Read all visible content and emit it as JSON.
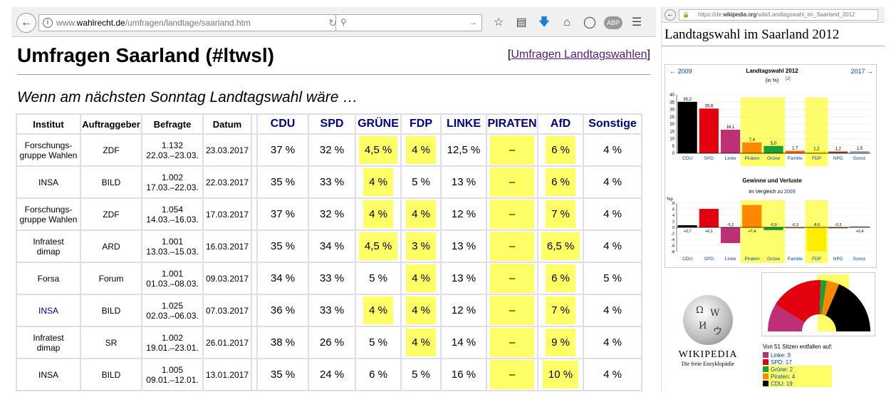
{
  "browser_left": {
    "url_prefix": "www.",
    "url_domain": "wahlrecht.de",
    "url_path": "/umfragen/landtage/saarland.htm",
    "abp_label": "ABP"
  },
  "page": {
    "title": "Umfragen Saarland (#ltwsl)",
    "top_link_open": "[",
    "top_link": "Umfragen Landtagswahlen",
    "top_link_close": "]",
    "subtitle": "Wenn am nächsten Sonntag Landtagswahl wäre …"
  },
  "table": {
    "headers": [
      "Institut",
      "Auftraggeber",
      "Befragte",
      "Datum"
    ],
    "parties": [
      "CDU",
      "SPD",
      "GRÜNE",
      "FDP",
      "LINKE",
      "PIRATEN",
      "AfD",
      "Sonstige"
    ],
    "rows": [
      {
        "inst1": "Forschungs-",
        "inst2": "gruppe Wahlen",
        "client": "ZDF",
        "n": "1.132",
        "range": "22.03.–23.03.",
        "date": "23.03.2017",
        "cdu": "37 %",
        "spd": "32 %",
        "gruene": "4,5 %",
        "fdp": "4 %",
        "linke": "12,5 %",
        "piraten": "–",
        "afd": "6 %",
        "sonst": "4 %"
      },
      {
        "inst1": "INSA",
        "inst2": "",
        "client": "BILD",
        "n": "1.002",
        "range": "17.03.–22.03.",
        "date": "22.03.2017",
        "cdu": "35 %",
        "spd": "33 %",
        "gruene": "4 %",
        "fdp": "5 %",
        "linke": "13 %",
        "piraten": "–",
        "afd": "6 %",
        "sonst": "4 %"
      },
      {
        "inst1": "Forschungs-",
        "inst2": "gruppe Wahlen",
        "client": "ZDF",
        "n": "1.054",
        "range": "14.03.–16.03.",
        "date": "17.03.2017",
        "cdu": "37 %",
        "spd": "32 %",
        "gruene": "4 %",
        "fdp": "4 %",
        "linke": "12 %",
        "piraten": "–",
        "afd": "7 %",
        "sonst": "4 %"
      },
      {
        "inst1": "Infratest",
        "inst2": "dimap",
        "client": "ARD",
        "n": "1.001",
        "range": "13.03.–15.03.",
        "date": "16.03.2017",
        "cdu": "35 %",
        "spd": "34 %",
        "gruene": "4,5 %",
        "fdp": "3 %",
        "linke": "13 %",
        "piraten": "–",
        "afd": "6,5 %",
        "sonst": "4 %"
      },
      {
        "inst1": "Forsa",
        "inst2": "",
        "client": "Forum",
        "n": "1.001",
        "range": "01.03.–08.03.",
        "date": "09.03.2017",
        "cdu": "34 %",
        "spd": "33 %",
        "gruene": "5 %",
        "fdp": "4 %",
        "linke": "13 %",
        "piraten": "–",
        "afd": "6 %",
        "sonst": "5 %"
      },
      {
        "inst1": "INSA",
        "inst2": "",
        "client": "BILD",
        "n": "1.025",
        "range": "02.03.–06.03.",
        "date": "07.03.2017",
        "cdu": "36 %",
        "spd": "33 %",
        "gruene": "4 %",
        "fdp": "4 %",
        "linke": "12 %",
        "piraten": "–",
        "afd": "7 %",
        "sonst": "4 %"
      },
      {
        "inst1": "Infratest",
        "inst2": "dimap",
        "client": "SR",
        "n": "1.002",
        "range": "19.01.–23.01.",
        "date": "26.01.2017",
        "cdu": "38 %",
        "spd": "26 %",
        "gruene": "5 %",
        "fdp": "4 %",
        "linke": "14 %",
        "piraten": "–",
        "afd": "9 %",
        "sonst": "4 %"
      },
      {
        "inst1": "INSA",
        "inst2": "",
        "client": "BILD",
        "n": "1.005",
        "range": "09.01.–12.01.",
        "date": "13.01.2017",
        "cdu": "35 %",
        "spd": "24 %",
        "gruene": "6 %",
        "fdp": "5 %",
        "linke": "16 %",
        "piraten": "–",
        "afd": "10 %",
        "sonst": "4 %"
      }
    ]
  },
  "browser_right": {
    "url_prefix": "https://de.",
    "url_domain": "wikipedia.org",
    "url_path": "/wiki/Landtagswahl_im_Saarland_2012",
    "page_title": "Landtagswahl im Saarland 2012"
  },
  "wiki_chart": {
    "prev": "← 2009",
    "next": "2017 →",
    "title": "Landtagswahl 2012",
    "unit": "(in %)",
    "unit_ref": "[1]",
    "section2_title": "Gewinne und Verluste",
    "section2_sub_prefix": "im Vergleich zu ",
    "section2_sub_link": "2009",
    "y_unit2": "%p"
  },
  "chart_data": [
    {
      "type": "bar",
      "title": "Landtagswahl 2012",
      "ylabel": "(in %)",
      "categories": [
        "CDU",
        "SPD",
        "Linke",
        "Piraten",
        "Grüne",
        "Familie",
        "FDP",
        "NPD",
        "Sonst."
      ],
      "values": [
        35.2,
        30.6,
        16.1,
        7.4,
        5.0,
        1.7,
        1.2,
        1.2,
        1.5
      ],
      "labels": [
        "35,2",
        "30,6",
        "16,1",
        "7,4",
        "5,0",
        "1,7",
        "1,2",
        "1,2",
        "1,5"
      ],
      "colors": [
        "#000000",
        "#e3000f",
        "#be3075",
        "#ff8800",
        "#1aa037",
        "#ff6600",
        "#ffed00",
        "#8b4726",
        "#aaaaaa"
      ],
      "ylim": [
        0,
        40
      ],
      "yticks": [
        "0",
        "5",
        "10",
        "15",
        "20",
        "25",
        "30",
        "35",
        "40"
      ]
    },
    {
      "type": "bar",
      "title": "Gewinne und Verluste",
      "ylabel": "%p",
      "categories": [
        "CDU",
        "SPD",
        "Linke",
        "Piraten",
        "Grüne",
        "Familie",
        "FDP",
        "NPD",
        "Sonst."
      ],
      "values": [
        0.7,
        6.1,
        -5.2,
        7.4,
        -0.9,
        -0.3,
        -8.0,
        -0.3,
        0.4
      ],
      "labels": [
        "+0,7",
        "+6,1",
        "-5,2",
        "+7,4",
        "-0,9",
        "-0,3",
        "-8,0",
        "-0,3",
        "+0,4"
      ],
      "colors": [
        "#000000",
        "#e3000f",
        "#be3075",
        "#ff8800",
        "#1aa037",
        "#ff6600",
        "#ffed00",
        "#8b4726",
        "#aaaaaa"
      ],
      "ylim": [
        -8,
        8
      ],
      "yticks": [
        "8",
        "6",
        "4",
        "2",
        "0",
        "-2",
        "-4",
        "-6",
        "-8"
      ]
    },
    {
      "type": "pie",
      "title": "Von 51 Sitzen entfallen auf:",
      "categories": [
        "Linke",
        "SPD",
        "Grüne",
        "Piraten",
        "CDU"
      ],
      "values": [
        9,
        17,
        2,
        4,
        19
      ],
      "colors": [
        "#be3075",
        "#e3000f",
        "#1aa037",
        "#ff8800",
        "#000000"
      ]
    }
  ],
  "wiki_bottom": {
    "logo_name": "WIKIPEDIA",
    "logo_sub": "Die freie Enzyklopädie",
    "seats_title": "Von 51 Sitzen entfallen auf:",
    "seats": [
      {
        "label": "Linke: 9",
        "color": "#be3075"
      },
      {
        "label": "SPD: 17",
        "color": "#e3000f"
      },
      {
        "label": "Grüne: 2",
        "color": "#1aa037"
      },
      {
        "label": "Piraten: 4",
        "color": "#ff8800"
      },
      {
        "label": "CDU: 19",
        "color": "#000000"
      }
    ]
  }
}
